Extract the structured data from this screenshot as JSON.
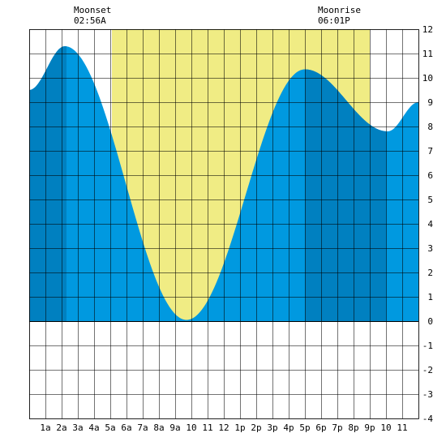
{
  "chart_data": {
    "type": "area",
    "title": "",
    "xlabel": "",
    "ylabel": "",
    "xlim": [
      0,
      24
    ],
    "ylim": [
      -4,
      12
    ],
    "grid": true,
    "x_tick_labels": [
      "1a",
      "2a",
      "3a",
      "4a",
      "5a",
      "6a",
      "7a",
      "8a",
      "9a",
      "10",
      "11",
      "12",
      "1p",
      "2p",
      "3p",
      "4p",
      "5p",
      "6p",
      "7p",
      "8p",
      "9p",
      "10",
      "11"
    ],
    "y_tick_labels": [
      "-4",
      "-3",
      "-2",
      "-1",
      "0",
      "1",
      "2",
      "3",
      "4",
      "5",
      "6",
      "7",
      "8",
      "9",
      "10",
      "11",
      "12"
    ],
    "tide_extremes": [
      {
        "time_h": 2.2,
        "height": 11.3
      },
      {
        "time_h": 9.7,
        "height": 0.05
      },
      {
        "time_h": 17.0,
        "height": 10.35
      },
      {
        "time_h": 22.1,
        "height": 7.8
      }
    ],
    "tide_start": {
      "time_h": 0,
      "height": 9.5
    },
    "tide_end": {
      "time_h": 24,
      "height": 9.0
    },
    "daylight": {
      "start_h": 5.1,
      "end_h": 21.0
    },
    "moon_bands": [
      {
        "start_h": 0,
        "end_h": 2.3
      },
      {
        "start_h": 17.0,
        "end_h": 22.0
      }
    ],
    "colors": {
      "daylight": "#f0ec84",
      "tide": "#0099e0",
      "tide_moon": "#0080c0",
      "grid": "#000000",
      "background": "#ffffff"
    }
  },
  "annotations": {
    "moonset": {
      "label": "Moonset",
      "time": "02:56A"
    },
    "moonrise": {
      "label": "Moonrise",
      "time": "06:01P"
    }
  }
}
